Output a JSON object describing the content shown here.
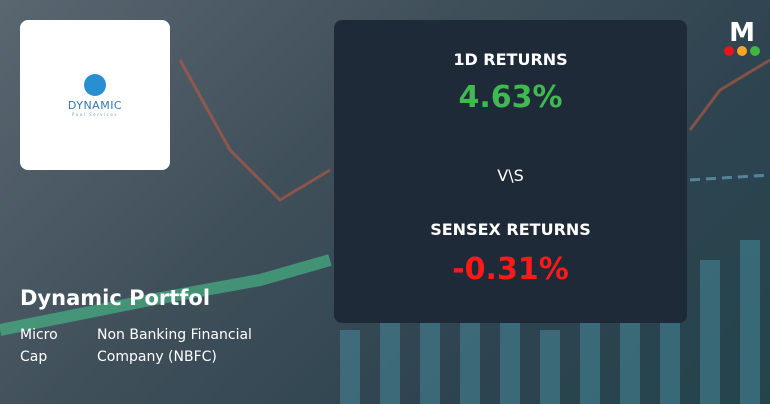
{
  "logo": {
    "name": "DYNAMIC",
    "sub": "Pool Services"
  },
  "company": {
    "name": "Dynamic Portfol",
    "cap": [
      "Micro",
      "Cap"
    ],
    "sector": [
      "Non Banking Financial",
      "Company (NBFC)"
    ]
  },
  "returns": {
    "label": "1D RETURNS",
    "value": "4.63%",
    "vs": "V\\S",
    "index_label": "SENSEX RETURNS",
    "index_value": "-0.31%"
  },
  "colors": {
    "positive": "#3fb950",
    "negative": "#ff1a1a",
    "panel": "#1f2a38"
  },
  "brand": {
    "letter": "M",
    "dots": [
      "#e8141c",
      "#f5a623",
      "#3fb63f"
    ]
  }
}
